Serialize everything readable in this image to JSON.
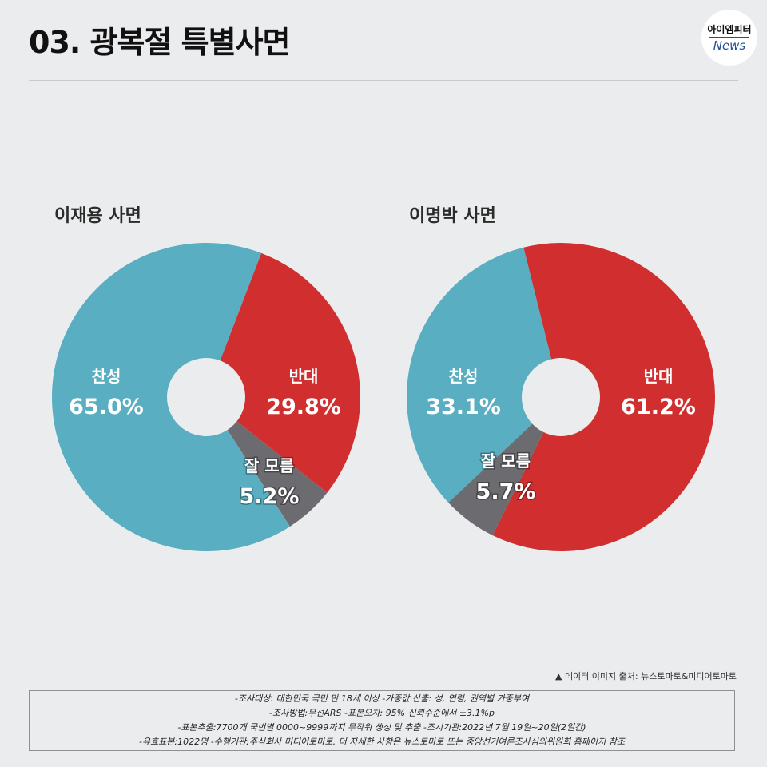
{
  "header": {
    "title": "03. 광복절 특별사면",
    "logo_top": "아이엠피터",
    "logo_bottom": "News"
  },
  "colors": {
    "support": "#5aaec2",
    "oppose": "#d12f2f",
    "unknown": "#6b6b70",
    "hole": "#ebecee"
  },
  "chart_data": [
    {
      "type": "pie",
      "title": "이재용 사면",
      "slices": [
        {
          "label": "찬성",
          "value": 65.0,
          "display": "65.0%",
          "color": "#5aaec2"
        },
        {
          "label": "반대",
          "value": 29.8,
          "display": "29.8%",
          "color": "#d12f2f"
        },
        {
          "label": "잘 모름",
          "value": 5.2,
          "display": "5.2%",
          "color": "#6b6b70"
        }
      ]
    },
    {
      "type": "pie",
      "title": "이명박 사면",
      "slices": [
        {
          "label": "찬성",
          "value": 33.1,
          "display": "33.1%",
          "color": "#5aaec2"
        },
        {
          "label": "반대",
          "value": 61.2,
          "display": "61.2%",
          "color": "#d12f2f"
        },
        {
          "label": "잘 모름",
          "value": 5.7,
          "display": "5.7%",
          "color": "#6b6b70"
        }
      ]
    }
  ],
  "footer": {
    "source": "▲ 데이터 이미지 출처: 뉴스토마토&미디어토마토",
    "notes": [
      "-조사대상: 대한민국 국민 만 18세 이상 -가중값 산출: 성, 연령, 권역별 가중부여",
      "-조사방법:무선ARS -표본오차: 95% 신뢰수준에서 ±3.1%p",
      "-표본추출:7700개 국번별 0000~9999까지 무작위 생성 및 추출 -조시기관:2022년 7월 19일~20일(2일간)",
      "-유효표본:1022명 -수행기관:주식회사 미디어토마토. 더 자세한 사항은 뉴스토마토 또는 중앙선거여론조사심의위원회 홈페이지 참조"
    ]
  }
}
